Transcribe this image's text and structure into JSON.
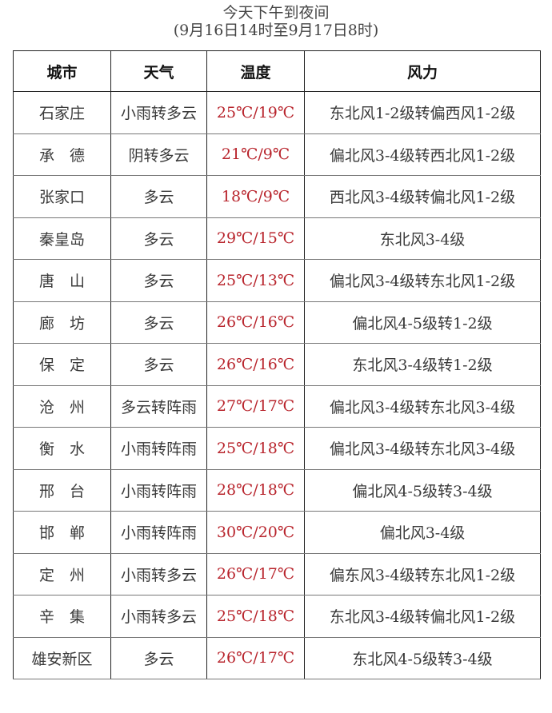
{
  "title": "今天下午到夜间",
  "subtitle": "(9月16日14时至9月17日8时)",
  "colors": {
    "temperature": "#b8242c"
  },
  "headers": [
    "城市",
    "天气",
    "温度",
    "风力"
  ],
  "rows": [
    {
      "city": "石家庄",
      "weather": "小雨转多云",
      "temp": "25℃/19℃",
      "wind": "东北风1-2级转偏西风1-2级"
    },
    {
      "city": "承　德",
      "weather": "阴转多云",
      "temp": "21℃/9℃",
      "wind": "偏北风3-4级转西北风1-2级"
    },
    {
      "city": "张家口",
      "weather": "多云",
      "temp": "18℃/9℃",
      "wind": "西北风3-4级转偏北风1-2级"
    },
    {
      "city": "秦皇岛",
      "weather": "多云",
      "temp": "29℃/15℃",
      "wind": "东北风3-4级"
    },
    {
      "city": "唐　山",
      "weather": "多云",
      "temp": "25℃/13℃",
      "wind": "偏北风3-4级转东北风1-2级"
    },
    {
      "city": "廊　坊",
      "weather": "多云",
      "temp": "26℃/16℃",
      "wind": "偏北风4-5级转1-2级"
    },
    {
      "city": "保　定",
      "weather": "多云",
      "temp": "26℃/16℃",
      "wind": "东北风3-4级转1-2级"
    },
    {
      "city": "沧　州",
      "weather": "多云转阵雨",
      "temp": "27℃/17℃",
      "wind": "偏北风3-4级转东北风3-4级"
    },
    {
      "city": "衡　水",
      "weather": "小雨转阵雨",
      "temp": "25℃/18℃",
      "wind": "偏北风3-4级转东北风3-4级"
    },
    {
      "city": "邢　台",
      "weather": "小雨转阵雨",
      "temp": "28℃/18℃",
      "wind": "偏北风4-5级转3-4级"
    },
    {
      "city": "邯　郸",
      "weather": "小雨转阵雨",
      "temp": "30℃/20℃",
      "wind": "偏北风3-4级"
    },
    {
      "city": "定　州",
      "weather": "小雨转多云",
      "temp": "26℃/17℃",
      "wind": "偏东风3-4级转东北风1-2级"
    },
    {
      "city": "辛　集",
      "weather": "小雨转多云",
      "temp": "25℃/18℃",
      "wind": "东北风3-4级转偏北风1-2级"
    },
    {
      "city": "雄安新区",
      "weather": "多云",
      "temp": "26℃/17℃",
      "wind": "东北风4-5级转3-4级"
    }
  ]
}
